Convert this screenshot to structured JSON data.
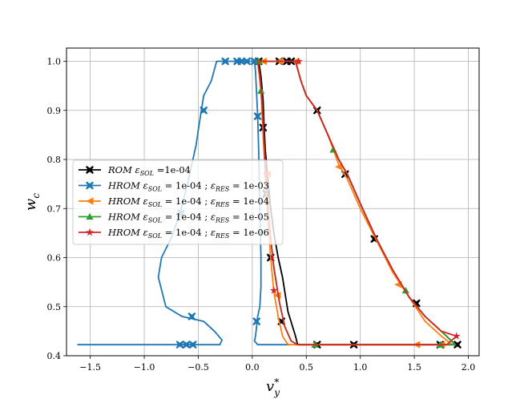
{
  "chart_data": {
    "type": "line",
    "xlabel": "v*_y",
    "ylabel": "w_c",
    "xlim": [
      -1.72,
      2.1
    ],
    "ylim": [
      0.4,
      1.027
    ],
    "xticks": [
      -1.5,
      -1.0,
      -0.5,
      0.0,
      0.5,
      1.0,
      1.5,
      2.0
    ],
    "xtick_labels": [
      "−1.5",
      "−1.0",
      "−0.5",
      "0.0",
      "0.5",
      "1.0",
      "1.5",
      "2.0"
    ],
    "yticks": [
      0.4,
      0.5,
      0.6,
      0.7,
      0.8,
      0.9,
      1.0
    ],
    "ytick_labels": [
      "0.4",
      "0.5",
      "0.6",
      "0.7",
      "0.8",
      "0.9",
      "1.0"
    ],
    "grid": true,
    "legend_position": "center-left",
    "series": [
      {
        "name": "ROM ε_SOL =1e-04",
        "legend": [
          {
            "t": "ROM ",
            "i": true
          },
          {
            "t": "ε",
            "i": true
          },
          {
            "t": "SOL",
            "i": true,
            "s": true
          },
          {
            "t": " =1e-04",
            "i": false
          }
        ],
        "color": "#000000",
        "marker": "X",
        "left": [
          [
            0.42,
            0.4226
          ],
          [
            0.4,
            0.44
          ],
          [
            0.33,
            0.49
          ],
          [
            0.28,
            0.56
          ],
          [
            0.24,
            0.6
          ],
          [
            0.2,
            0.65
          ],
          [
            0.17,
            0.7
          ],
          [
            0.14,
            0.77
          ],
          [
            0.12,
            0.82
          ],
          [
            0.11,
            0.865
          ],
          [
            0.1,
            0.92
          ],
          [
            0.08,
            0.97
          ],
          [
            0.06,
            1.0
          ]
        ],
        "left_markers": [
          [
            0.27,
            0.47
          ],
          [
            0.17,
            0.6
          ],
          [
            0.13,
            0.73
          ],
          [
            0.1,
            0.865
          ],
          [
            0.06,
            1.0
          ]
        ],
        "right": [
          [
            0.06,
            1.0
          ],
          [
            0.1,
            1.0
          ],
          [
            0.2,
            1.0
          ],
          [
            0.3,
            1.0
          ],
          [
            0.4,
            1.0
          ],
          [
            0.45,
            0.96
          ],
          [
            0.5,
            0.93
          ],
          [
            0.6,
            0.9
          ],
          [
            0.7,
            0.85
          ],
          [
            0.8,
            0.8
          ],
          [
            0.88,
            0.77
          ],
          [
            1.0,
            0.71
          ],
          [
            1.15,
            0.638
          ],
          [
            1.3,
            0.575
          ],
          [
            1.45,
            0.52
          ],
          [
            1.6,
            0.48
          ],
          [
            1.75,
            0.45
          ],
          [
            1.88,
            0.4226
          ],
          [
            1.75,
            0.4226
          ],
          [
            1.5,
            0.4226
          ],
          [
            1.2,
            0.4226
          ],
          [
            0.95,
            0.4226
          ],
          [
            0.6,
            0.4226
          ],
          [
            0.42,
            0.4226
          ]
        ],
        "right_markers": [
          [
            0.25,
            1.0
          ],
          [
            0.32,
            1.0
          ],
          [
            0.36,
            1.0
          ],
          [
            0.6,
            0.9
          ],
          [
            0.86,
            0.77
          ],
          [
            1.13,
            0.638
          ],
          [
            1.52,
            0.507
          ],
          [
            1.9,
            0.4226
          ],
          [
            1.74,
            0.4226
          ],
          [
            0.94,
            0.4226
          ],
          [
            0.6,
            0.4226
          ]
        ]
      },
      {
        "name": "HROM ε_SOL = 1e-04 ; ε_RES = 1e-03",
        "legend": [
          {
            "t": "HROM ",
            "i": true
          },
          {
            "t": "ε",
            "i": true
          },
          {
            "t": "SOL",
            "i": true,
            "s": true
          },
          {
            "t": " = 1e-04 ; ",
            "i": false
          },
          {
            "t": "ε",
            "i": true
          },
          {
            "t": "RES",
            "i": true,
            "s": true
          },
          {
            "t": " = 1e-03",
            "i": false
          }
        ],
        "color": "#1f77b4",
        "marker": "X",
        "left": [
          [
            -1.62,
            0.4226
          ],
          [
            -1.0,
            0.4226
          ],
          [
            -0.7,
            0.4226
          ],
          [
            -0.5,
            0.4226
          ],
          [
            -0.3,
            0.4226
          ],
          [
            -0.28,
            0.432
          ],
          [
            -0.35,
            0.45
          ],
          [
            -0.45,
            0.47
          ],
          [
            -0.65,
            0.48
          ],
          [
            -0.8,
            0.5
          ],
          [
            -0.87,
            0.56
          ],
          [
            -0.84,
            0.6
          ],
          [
            -0.75,
            0.64
          ],
          [
            -0.67,
            0.69
          ],
          [
            -0.6,
            0.75
          ],
          [
            -0.52,
            0.83
          ],
          [
            -0.5,
            0.86
          ],
          [
            -0.45,
            0.93
          ],
          [
            -0.38,
            0.96
          ],
          [
            -0.33,
            1.0
          ],
          [
            -0.2,
            1.0
          ],
          [
            -0.05,
            1.0
          ],
          [
            0.0,
            1.0
          ]
        ],
        "left_markers": [
          [
            -0.67,
            0.4226
          ],
          [
            -0.61,
            0.4226
          ],
          [
            -0.55,
            0.4226
          ],
          [
            -0.56,
            0.48
          ],
          [
            -0.66,
            0.69
          ],
          [
            -0.45,
            0.9
          ],
          [
            -0.25,
            1.0
          ],
          [
            -0.14,
            1.0
          ],
          [
            -0.1,
            1.0
          ],
          [
            -0.05,
            1.0
          ],
          [
            0.02,
            1.0
          ]
        ],
        "right": [
          [
            0.02,
            1.0
          ],
          [
            0.03,
            0.98
          ],
          [
            0.05,
            0.89
          ],
          [
            0.06,
            0.81
          ],
          [
            0.07,
            0.7
          ],
          [
            0.08,
            0.6
          ],
          [
            0.08,
            0.54
          ],
          [
            0.07,
            0.5
          ],
          [
            0.05,
            0.48
          ],
          [
            0.04,
            0.46
          ],
          [
            0.03,
            0.44
          ],
          [
            0.02,
            0.43
          ],
          [
            0.05,
            0.4226
          ],
          [
            0.35,
            0.4226
          ]
        ],
        "right_markers": [
          [
            0.05,
            0.888
          ],
          [
            0.04,
            0.47
          ]
        ]
      },
      {
        "name": "HROM ε_SOL = 1e-04 ; ε_RES = 1e-04",
        "legend": [
          {
            "t": "HROM ",
            "i": true
          },
          {
            "t": "ε",
            "i": true
          },
          {
            "t": "SOL",
            "i": true,
            "s": true
          },
          {
            "t": " = 1e-04 ; ",
            "i": false
          },
          {
            "t": "ε",
            "i": true
          },
          {
            "t": "RES",
            "i": true,
            "s": true
          },
          {
            "t": " = 1e-04",
            "i": false
          }
        ],
        "color": "#ff7f0e",
        "marker": "<",
        "left": [
          [
            0.33,
            0.4226
          ],
          [
            0.28,
            0.44
          ],
          [
            0.24,
            0.48
          ],
          [
            0.2,
            0.53
          ],
          [
            0.17,
            0.6
          ],
          [
            0.15,
            0.66
          ],
          [
            0.13,
            0.72
          ],
          [
            0.12,
            0.77
          ],
          [
            0.1,
            0.85
          ],
          [
            0.08,
            0.94
          ],
          [
            0.05,
            1.0
          ]
        ],
        "left_markers": [
          [
            0.23,
            0.523
          ],
          [
            0.14,
            0.77
          ],
          [
            0.1,
            1.0
          ]
        ],
        "right": [
          [
            0.05,
            1.0
          ],
          [
            0.4,
            1.0
          ],
          [
            0.45,
            0.96
          ],
          [
            0.5,
            0.93
          ],
          [
            0.6,
            0.9
          ],
          [
            0.7,
            0.85
          ],
          [
            0.8,
            0.79
          ],
          [
            0.88,
            0.76
          ],
          [
            1.0,
            0.7
          ],
          [
            1.15,
            0.635
          ],
          [
            1.3,
            0.57
          ],
          [
            1.45,
            0.52
          ],
          [
            1.6,
            0.47
          ],
          [
            1.75,
            0.44
          ],
          [
            1.85,
            0.4226
          ],
          [
            1.7,
            0.4226
          ],
          [
            1.5,
            0.4226
          ],
          [
            1.2,
            0.4226
          ],
          [
            0.95,
            0.4226
          ],
          [
            0.6,
            0.4226
          ],
          [
            0.33,
            0.4226
          ]
        ],
        "right_markers": [
          [
            0.25,
            1.0
          ],
          [
            0.4,
            1.0
          ],
          [
            0.8,
            0.785
          ],
          [
            1.35,
            0.545
          ],
          [
            1.52,
            0.4226
          ],
          [
            1.75,
            0.4226
          ]
        ]
      },
      {
        "name": "HROM ε_SOL = 1e-04 ; ε_RES = 1e-05",
        "legend": [
          {
            "t": "HROM ",
            "i": true
          },
          {
            "t": "ε",
            "i": true
          },
          {
            "t": "SOL",
            "i": true,
            "s": true
          },
          {
            "t": " = 1e-04 ; ",
            "i": false
          },
          {
            "t": "ε",
            "i": true
          },
          {
            "t": "RES",
            "i": true,
            "s": true
          },
          {
            "t": " = 1e-05",
            "i": false
          }
        ],
        "color": "#2ca02c",
        "marker": "^",
        "left": [
          [
            0.42,
            0.4226
          ],
          [
            0.36,
            0.43
          ],
          [
            0.3,
            0.46
          ],
          [
            0.25,
            0.51
          ],
          [
            0.2,
            0.58
          ],
          [
            0.16,
            0.66
          ],
          [
            0.13,
            0.75
          ],
          [
            0.11,
            0.83
          ],
          [
            0.09,
            0.92
          ],
          [
            0.07,
            0.97
          ],
          [
            0.05,
            1.0
          ]
        ],
        "left_markers": [
          [
            0.08,
            0.94
          ]
        ],
        "right": [
          [
            0.05,
            1.0
          ],
          [
            0.4,
            1.0
          ],
          [
            0.45,
            0.96
          ],
          [
            0.5,
            0.93
          ],
          [
            0.6,
            0.9
          ],
          [
            0.7,
            0.85
          ],
          [
            0.8,
            0.8
          ],
          [
            0.88,
            0.77
          ],
          [
            1.0,
            0.71
          ],
          [
            1.15,
            0.638
          ],
          [
            1.3,
            0.575
          ],
          [
            1.45,
            0.52
          ],
          [
            1.6,
            0.48
          ],
          [
            1.75,
            0.45
          ],
          [
            1.88,
            0.4226
          ],
          [
            1.75,
            0.4226
          ],
          [
            1.5,
            0.4226
          ],
          [
            1.2,
            0.4226
          ],
          [
            0.95,
            0.4226
          ],
          [
            0.6,
            0.4226
          ],
          [
            0.42,
            0.4226
          ]
        ],
        "right_markers": [
          [
            0.06,
            1.0
          ],
          [
            0.75,
            0.82
          ],
          [
            1.42,
            0.533
          ],
          [
            0.58,
            0.4226
          ],
          [
            1.74,
            0.4226
          ]
        ]
      },
      {
        "name": "HROM ε_SOL = 1e-04 ; ε_RES = 1e-06",
        "legend": [
          {
            "t": "HROM ",
            "i": true
          },
          {
            "t": "ε",
            "i": true
          },
          {
            "t": "SOL",
            "i": true,
            "s": true
          },
          {
            "t": " = 1e-04 ; ",
            "i": false
          },
          {
            "t": "ε",
            "i": true
          },
          {
            "t": "RES",
            "i": true,
            "s": true
          },
          {
            "t": " = 1e-06",
            "i": false
          }
        ],
        "color": "#d62728",
        "marker": "*",
        "left": [
          [
            0.42,
            0.4226
          ],
          [
            0.36,
            0.43
          ],
          [
            0.3,
            0.46
          ],
          [
            0.25,
            0.51
          ],
          [
            0.2,
            0.58
          ],
          [
            0.16,
            0.66
          ],
          [
            0.13,
            0.75
          ],
          [
            0.11,
            0.83
          ],
          [
            0.09,
            0.92
          ],
          [
            0.07,
            0.97
          ],
          [
            0.05,
            1.0
          ]
        ],
        "left_markers": [
          [
            0.2,
            0.533
          ],
          [
            0.13,
            0.77
          ]
        ],
        "right": [
          [
            0.05,
            1.0
          ],
          [
            0.4,
            1.0
          ],
          [
            0.45,
            0.96
          ],
          [
            0.5,
            0.93
          ],
          [
            0.6,
            0.9
          ],
          [
            0.7,
            0.85
          ],
          [
            0.8,
            0.8
          ],
          [
            0.88,
            0.77
          ],
          [
            1.0,
            0.71
          ],
          [
            1.15,
            0.638
          ],
          [
            1.3,
            0.575
          ],
          [
            1.45,
            0.52
          ],
          [
            1.6,
            0.48
          ],
          [
            1.75,
            0.45
          ],
          [
            1.89,
            0.44
          ],
          [
            1.8,
            0.4226
          ],
          [
            1.5,
            0.4226
          ],
          [
            1.2,
            0.4226
          ],
          [
            0.95,
            0.4226
          ],
          [
            0.6,
            0.4226
          ],
          [
            0.42,
            0.4226
          ]
        ],
        "right_markers": [
          [
            0.43,
            1.0
          ],
          [
            1.89,
            0.44
          ]
        ]
      }
    ]
  }
}
